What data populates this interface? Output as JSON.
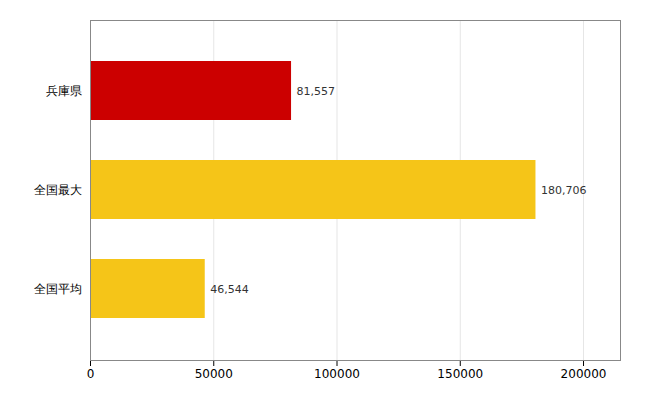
{
  "chart_data": {
    "type": "bar",
    "orientation": "horizontal",
    "categories": [
      "全国平均",
      "全国最大",
      "兵庫県"
    ],
    "values": [
      46544,
      180706,
      81557
    ],
    "value_labels": [
      "46,544",
      "180,706",
      "81,557"
    ],
    "colors": [
      "#F5C518",
      "#F5C518",
      "#CC0000"
    ],
    "xlim": [
      0,
      215000
    ],
    "xticks": [
      0,
      50000,
      100000,
      150000,
      200000
    ],
    "grid": true,
    "data_labels": true
  }
}
